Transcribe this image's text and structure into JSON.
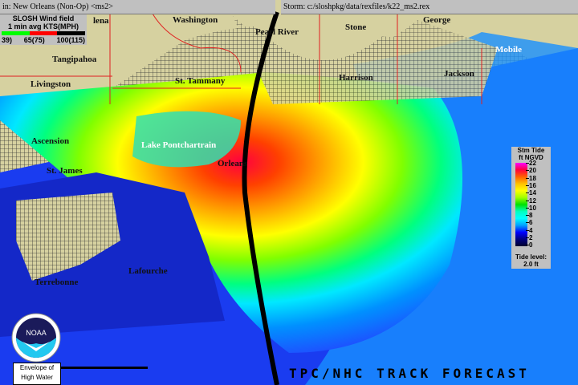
{
  "header": {
    "basin": "in: New Orleans (Non-Op) <ms2>",
    "storm": "Storm: c:/sloshpkg/data/rexfiles/k22_ms2.rex"
  },
  "wind_legend": {
    "title": "SLOSH Wind field",
    "subtitle": "1 min avg   KTS(MPH)",
    "ticks": [
      "39)",
      "65(75)",
      "100(115)"
    ],
    "colors": [
      "#00ff00",
      "#ff0000",
      "#000000"
    ]
  },
  "labels": {
    "washington": "Washington",
    "pearl_river": "Pearl River",
    "stone": "Stone",
    "george": "George",
    "mobile": "Mobile",
    "helena": "lena",
    "tangipahoa": "Tangipahoa",
    "st_tammany": "St. Tammany",
    "livingston": "Livingston",
    "harrison": "Harrison",
    "jackson": "Jackson",
    "ascension": "Ascension",
    "st_james": "St. James",
    "lake": "Lake Pontchartrain",
    "orleans": "Orleans",
    "terrebonne": "Terrebonne",
    "lafourche": "Lafourche"
  },
  "surge_legend": {
    "title_line1": "Stm Tide",
    "title_line2": "ft NGVD",
    "ticks": [
      "22",
      "20",
      "18",
      "16",
      "14",
      "12",
      "10",
      "8",
      "6",
      "4",
      "2",
      "0"
    ],
    "tide_label": "Tide level:",
    "tide_value": "2.0 ft"
  },
  "logo": {
    "text": "NOAA"
  },
  "envelope": {
    "line1": "Envelope of",
    "line2": "High Water"
  },
  "track_title": "TPC/NHC TRACK FORECAST"
}
